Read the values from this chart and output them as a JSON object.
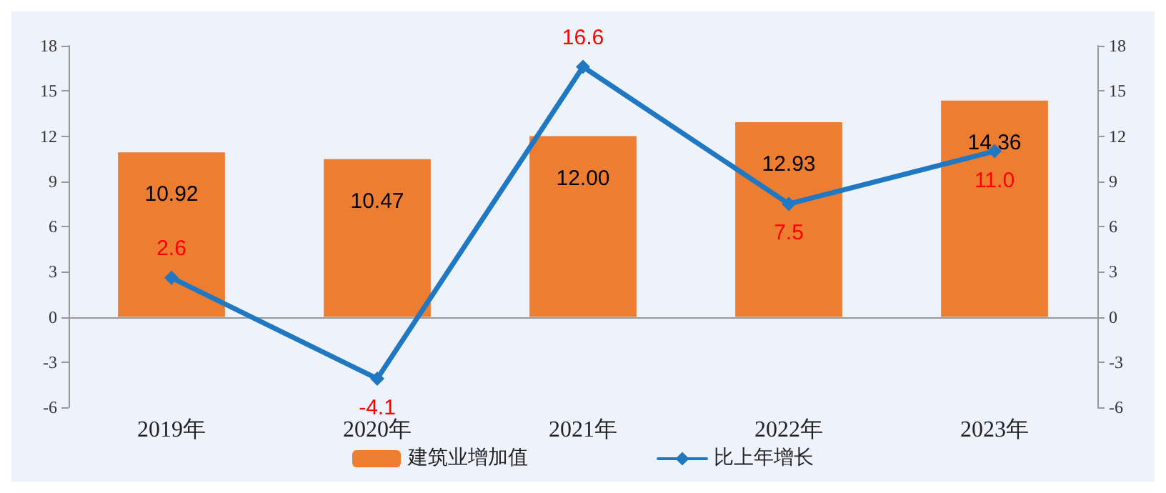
{
  "chart_data": {
    "type": "bar",
    "categories": [
      "2019年",
      "2020年",
      "2021年",
      "2022年",
      "2023年"
    ],
    "series": [
      {
        "name": "建筑业增加值",
        "color": "#ed7d31",
        "values": [
          10.92,
          10.47,
          12.0,
          12.93,
          14.36
        ],
        "value_labels": [
          "10.92",
          "10.47",
          "12.00",
          "12.93",
          "14.36"
        ]
      },
      {
        "name": "比上年增长",
        "type": "line",
        "axis": "y2",
        "color": "#1f78c1",
        "values": [
          2.6,
          -4.1,
          16.6,
          7.5,
          11.0
        ],
        "value_labels": [
          "2.6",
          "-4.1",
          "16.6",
          "7.5",
          "11.0"
        ]
      }
    ],
    "ylim": [
      -6,
      18
    ],
    "yticks": [
      -6,
      -3,
      0,
      3,
      6,
      9,
      12,
      15,
      18
    ],
    "y2lim": [
      -6,
      18
    ],
    "y2ticks": [
      -6,
      -3,
      0,
      3,
      6,
      9,
      12,
      15,
      18
    ],
    "legend": "bottom",
    "marker": "diamond",
    "line_style": "solid"
  }
}
